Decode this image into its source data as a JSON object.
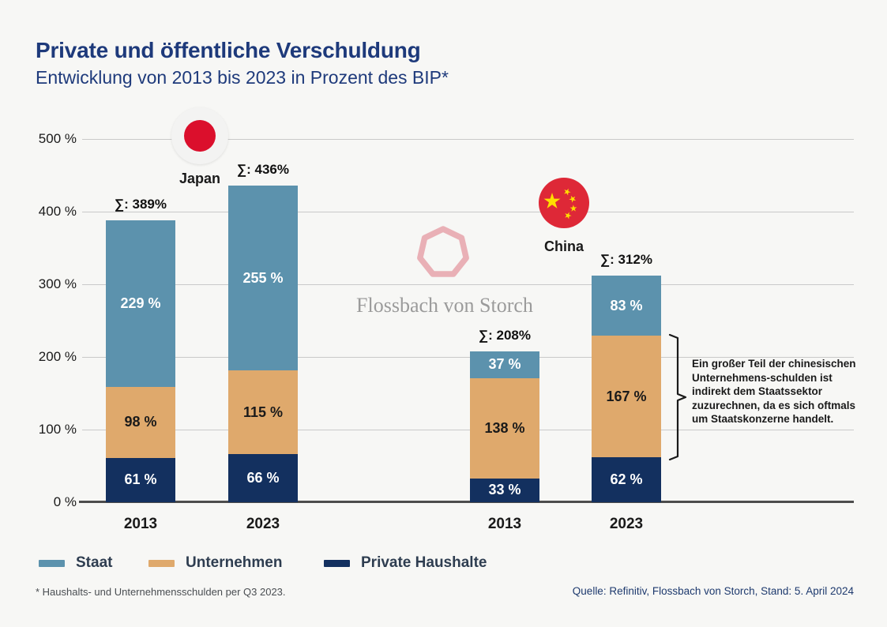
{
  "header": {
    "title": "Private und öffentliche Verschuldung",
    "subtitle": "Entwicklung von 2013 bis 2023 in Prozent des BIP*"
  },
  "colors": {
    "background": "#F7F7F5",
    "title_navy": "#1E3A7B",
    "staat": "#5C92AD",
    "unternehmen": "#DFA96C",
    "private_haushalte": "#13305F",
    "gridline": "#C9C9C9",
    "axis": "#4D4D4D",
    "japan_red": "#DB0F2C",
    "china_red": "#DE2837",
    "china_star_yellow": "#FFDE00",
    "watermark_pink": "#E9B0B6",
    "watermark_gray": "#9B9B9B"
  },
  "y_axis": {
    "ticks": [
      {
        "label": "500 %",
        "value": 500
      },
      {
        "label": "400 %",
        "value": 400
      },
      {
        "label": "300 %",
        "value": 300
      },
      {
        "label": "200 %",
        "value": 200
      },
      {
        "label": "100 %",
        "value": 100
      },
      {
        "label": "0 %",
        "value": 0
      }
    ]
  },
  "chart_data": {
    "type": "bar",
    "stacked": true,
    "title": "Private und öffentliche Verschuldung",
    "subtitle": "Entwicklung von 2013 bis 2023 in Prozent des BIP*",
    "ylabel": "Prozent des BIP",
    "ylim": [
      0,
      500
    ],
    "grid": true,
    "legend_position": "bottom",
    "categories": [
      "Japan 2013",
      "Japan 2023",
      "China 2013",
      "China 2023"
    ],
    "series": [
      {
        "name": "Staat",
        "color": "#5C92AD",
        "values": [
          229,
          255,
          37,
          83
        ]
      },
      {
        "name": "Unternehmen",
        "color": "#DFA96C",
        "values": [
          98,
          115,
          138,
          167
        ]
      },
      {
        "name": "Private Haushalte",
        "color": "#13305F",
        "values": [
          61,
          66,
          33,
          62
        ]
      }
    ],
    "totals": [
      389,
      436,
      208,
      312
    ]
  },
  "bars": [
    {
      "group": "Japan",
      "year": "2013",
      "total_label": "∑: 389%",
      "segments": [
        {
          "series_key": "private-haushalte",
          "series": "Private Haushalte",
          "value": 61,
          "label": "61 %",
          "color": "#13305F",
          "label_color": "#FFFFFF"
        },
        {
          "series_key": "unternehmen",
          "series": "Unternehmen",
          "value": 98,
          "label": "98 %",
          "color": "#DFA96C",
          "label_color": "#1A1A1A"
        },
        {
          "series_key": "staat",
          "series": "Staat",
          "value": 229,
          "label": "229 %",
          "color": "#5C92AD",
          "label_color": "#FFFFFF"
        }
      ]
    },
    {
      "group": "Japan",
      "year": "2023",
      "total_label": "∑: 436%",
      "segments": [
        {
          "series_key": "private-haushalte",
          "series": "Private Haushalte",
          "value": 66,
          "label": "66 %",
          "color": "#13305F",
          "label_color": "#FFFFFF"
        },
        {
          "series_key": "unternehmen",
          "series": "Unternehmen",
          "value": 115,
          "label": "115 %",
          "color": "#DFA96C",
          "label_color": "#1A1A1A"
        },
        {
          "series_key": "staat",
          "series": "Staat",
          "value": 255,
          "label": "255 %",
          "color": "#5C92AD",
          "label_color": "#FFFFFF"
        }
      ]
    },
    {
      "group": "China",
      "year": "2013",
      "total_label": "∑: 208%",
      "segments": [
        {
          "series_key": "private-haushalte",
          "series": "Private Haushalte",
          "value": 33,
          "label": "33 %",
          "color": "#13305F",
          "label_color": "#FFFFFF"
        },
        {
          "series_key": "unternehmen",
          "series": "Unternehmen",
          "value": 138,
          "label": "138 %",
          "color": "#DFA96C",
          "label_color": "#1A1A1A"
        },
        {
          "series_key": "staat",
          "series": "Staat",
          "value": 37,
          "label": "37 %",
          "color": "#5C92AD",
          "label_color": "#FFFFFF"
        }
      ]
    },
    {
      "group": "China",
      "year": "2023",
      "total_label": "∑: 312%",
      "segments": [
        {
          "series_key": "private-haushalte",
          "series": "Private Haushalte",
          "value": 62,
          "label": "62 %",
          "color": "#13305F",
          "label_color": "#FFFFFF"
        },
        {
          "series_key": "unternehmen",
          "series": "Unternehmen",
          "value": 167,
          "label": "167 %",
          "color": "#DFA96C",
          "label_color": "#1A1A1A"
        },
        {
          "series_key": "staat",
          "series": "Staat",
          "value": 83,
          "label": "83 %",
          "color": "#5C92AD",
          "label_color": "#FFFFFF"
        }
      ]
    }
  ],
  "groups": {
    "japan_label": "Japan",
    "china_label": "China"
  },
  "watermark": {
    "text": "Flossbach von Storch",
    "logo": "heptagon-ring"
  },
  "annotation": {
    "text": "Ein großer Teil der chinesischen\nUnternehmens-schulden ist\nindirekt dem Staatssektor\nzuzurechnen, da es sich oftmals\num Staatskonzerne handelt."
  },
  "legend": {
    "items": [
      {
        "label": "Staat",
        "color": "#5C92AD"
      },
      {
        "label": "Unternehmen",
        "color": "#DFA96C"
      },
      {
        "label": "Private Haushalte",
        "color": "#13305F"
      }
    ]
  },
  "footnote": "* Haushalts- und Unternehmensschulden per Q3 2023.",
  "source": "Quelle: Refinitiv, Flossbach von Storch, Stand: 5. April 2024"
}
